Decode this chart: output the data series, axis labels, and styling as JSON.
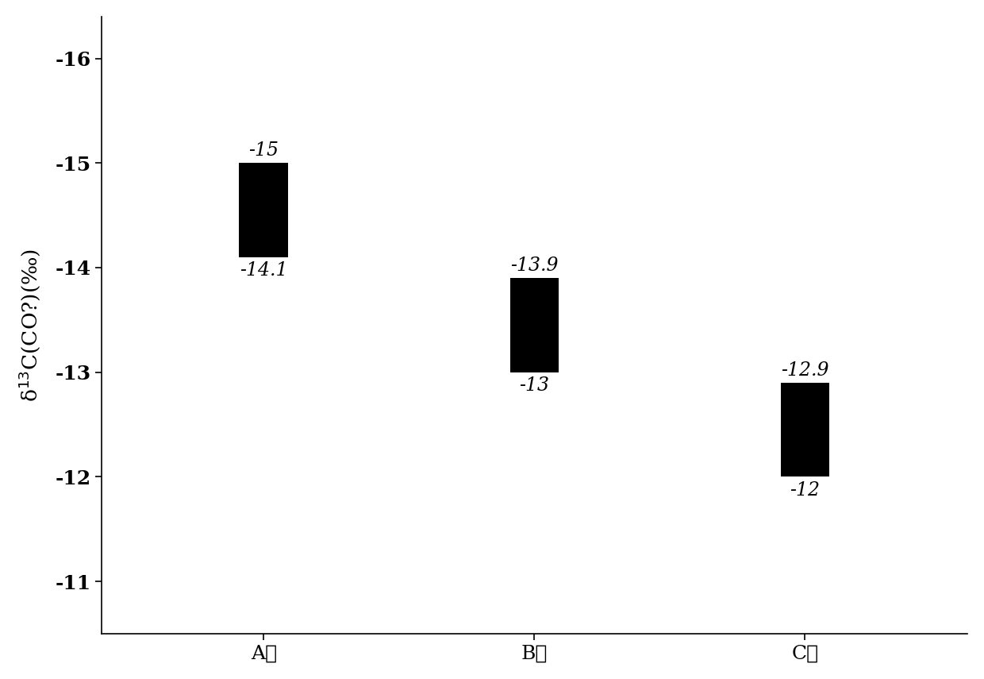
{
  "categories": [
    "A燤",
    "B燤",
    "C燤"
  ],
  "bar_tops": [
    -15,
    -13.9,
    -12.9
  ],
  "bar_bottoms": [
    -14.1,
    -13,
    -12
  ],
  "top_labels": [
    "-15",
    "-13.9",
    "-12.9"
  ],
  "bottom_labels": [
    "-14.1",
    "-13",
    "-12"
  ],
  "bar_color": "#000000",
  "bar_width": 0.18,
  "ylim_bottom": -10.5,
  "ylim_top": -16.4,
  "yticks": [
    -16,
    -15,
    -14,
    -13,
    -12,
    -11
  ],
  "ylabel": "δ$^{13}$C(CO?)(‰)",
  "background_color": "#ffffff",
  "label_fontsize": 17,
  "tick_fontsize": 18,
  "ylabel_fontsize": 19,
  "x_positions": [
    1,
    2,
    3
  ],
  "xlim": [
    0.4,
    3.6
  ]
}
